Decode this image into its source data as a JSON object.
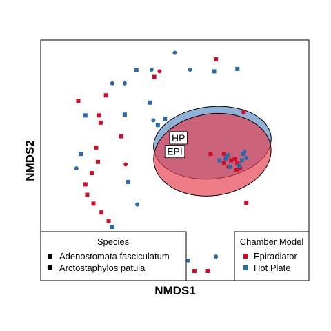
{
  "chart_data": {
    "type": "scatter",
    "xlabel": "NMDS1",
    "ylabel": "NMDS2",
    "xlim": [
      -1.5,
      1.5
    ],
    "ylim": [
      -1.5,
      1.5
    ],
    "grid": false,
    "colors": {
      "Epiradiator": "#c8102e",
      "Hot Plate": "#2c6aa6"
    },
    "ellipses": [
      {
        "label": "HP",
        "fill": "#5b8ec2",
        "cx": 0.42,
        "cy": 0.22,
        "rx": 0.66,
        "ry": 0.45,
        "rotation_deg": -6
      },
      {
        "label": "EPI",
        "fill": "#e8404f",
        "cx": 0.42,
        "cy": 0.07,
        "rx": 0.66,
        "ry": 0.51,
        "rotation_deg": -8
      }
    ],
    "legends": [
      {
        "title": "Species",
        "position": "bottom-left",
        "entries": [
          {
            "label": "Adenostomata fasciculatum",
            "shape": "square"
          },
          {
            "label": "Arctostaphylos patula",
            "shape": "circle"
          }
        ]
      },
      {
        "title": "Chamber Model",
        "position": "bottom-right",
        "entries": [
          {
            "label": "Epiradiator",
            "color": "#c8102e"
          },
          {
            "label": "Hot Plate",
            "color": "#2c6aa6"
          }
        ]
      }
    ],
    "series": [
      {
        "name": "Epiradiator",
        "color": "#c8102e",
        "points": [
          {
            "x": 0.46,
            "y": 1.26,
            "shape": "square"
          },
          {
            "x": -0.23,
            "y": 1.04,
            "shape": "square"
          },
          {
            "x": -0.17,
            "y": 1.11,
            "shape": "circle"
          },
          {
            "x": -1.08,
            "y": 0.74,
            "shape": "square"
          },
          {
            "x": -0.77,
            "y": 0.81,
            "shape": "square"
          },
          {
            "x": 0.77,
            "y": 0.6,
            "shape": "square"
          },
          {
            "x": -0.85,
            "y": 0.56,
            "shape": "square"
          },
          {
            "x": -0.83,
            "y": 0.47,
            "shape": "square"
          },
          {
            "x": -0.6,
            "y": 0.3,
            "shape": "square"
          },
          {
            "x": -0.88,
            "y": 0.16,
            "shape": "square"
          },
          {
            "x": -0.86,
            "y": -0.02,
            "shape": "square"
          },
          {
            "x": -0.55,
            "y": -0.05,
            "shape": "circle"
          },
          {
            "x": -0.93,
            "y": -0.16,
            "shape": "square"
          },
          {
            "x": -1.0,
            "y": -0.3,
            "shape": "square"
          },
          {
            "x": -0.98,
            "y": -0.43,
            "shape": "square"
          },
          {
            "x": -0.91,
            "y": -0.54,
            "shape": "square"
          },
          {
            "x": -0.82,
            "y": -0.65,
            "shape": "square"
          },
          {
            "x": -0.74,
            "y": -0.76,
            "shape": "square"
          },
          {
            "x": 0.8,
            "y": -0.53,
            "shape": "square"
          },
          {
            "x": 0.4,
            "y": 0.08,
            "shape": "square"
          },
          {
            "x": 0.63,
            "y": 0.0,
            "shape": "square"
          },
          {
            "x": 0.55,
            "y": 0.08,
            "shape": "square"
          },
          {
            "x": 0.67,
            "y": 0.02,
            "shape": "square"
          },
          {
            "x": 0.69,
            "y": -0.12,
            "shape": "square"
          },
          {
            "x": 0.73,
            "y": -0.1,
            "shape": "square"
          },
          {
            "x": 0.6,
            "y": -0.08,
            "shape": "circle"
          },
          {
            "x": 0.7,
            "y": -0.03,
            "shape": "square"
          },
          {
            "x": 0.55,
            "y": -0.03,
            "shape": "square"
          },
          {
            "x": -0.15,
            "y": -1.12,
            "shape": "square"
          },
          {
            "x": 0.22,
            "y": -1.38,
            "shape": "square"
          },
          {
            "x": 0.37,
            "y": -1.38,
            "shape": "square"
          },
          {
            "x": -0.8,
            "y": -1.0,
            "shape": "square"
          }
        ]
      },
      {
        "name": "Hot Plate",
        "color": "#2c6aa6",
        "points": [
          {
            "x": 0.0,
            "y": 1.34,
            "shape": "circle"
          },
          {
            "x": -0.43,
            "y": 1.13,
            "shape": "square"
          },
          {
            "x": -0.26,
            "y": 1.13,
            "shape": "circle"
          },
          {
            "x": 0.17,
            "y": 1.13,
            "shape": "circle"
          },
          {
            "x": 0.44,
            "y": 1.11,
            "shape": "square"
          },
          {
            "x": 0.7,
            "y": 1.14,
            "shape": "square"
          },
          {
            "x": -0.7,
            "y": 0.96,
            "shape": "circle"
          },
          {
            "x": -0.56,
            "y": 0.96,
            "shape": "circle"
          },
          {
            "x": -1.0,
            "y": 0.56,
            "shape": "square"
          },
          {
            "x": -0.28,
            "y": 0.72,
            "shape": "square"
          },
          {
            "x": -0.24,
            "y": 0.5,
            "shape": "circle"
          },
          {
            "x": -0.56,
            "y": 0.57,
            "shape": "square"
          },
          {
            "x": -1.05,
            "y": 0.08,
            "shape": "square"
          },
          {
            "x": -1.1,
            "y": -0.1,
            "shape": "circle"
          },
          {
            "x": -0.52,
            "y": -0.27,
            "shape": "square"
          },
          {
            "x": -0.42,
            "y": -0.55,
            "shape": "circle"
          },
          {
            "x": -0.7,
            "y": -0.83,
            "shape": "square"
          },
          {
            "x": -0.8,
            "y": -0.92,
            "shape": "square"
          },
          {
            "x": 0.15,
            "y": -1.25,
            "shape": "circle"
          },
          {
            "x": 0.46,
            "y": -1.2,
            "shape": "circle"
          },
          {
            "x": -0.19,
            "y": 0.44,
            "shape": "square"
          },
          {
            "x": -0.11,
            "y": 0.52,
            "shape": "square"
          },
          {
            "x": 0.5,
            "y": 0.0,
            "shape": "square"
          },
          {
            "x": 0.59,
            "y": 0.06,
            "shape": "square"
          },
          {
            "x": 0.62,
            "y": -0.08,
            "shape": "square"
          },
          {
            "x": 0.72,
            "y": -0.07,
            "shape": "square"
          },
          {
            "x": 0.75,
            "y": 0.0,
            "shape": "square"
          },
          {
            "x": 0.76,
            "y": 0.08,
            "shape": "square"
          },
          {
            "x": 0.78,
            "y": 0.11,
            "shape": "circle"
          },
          {
            "x": 0.8,
            "y": 0.03,
            "shape": "circle"
          },
          {
            "x": 0.57,
            "y": 0.02,
            "shape": "square"
          }
        ]
      }
    ]
  }
}
